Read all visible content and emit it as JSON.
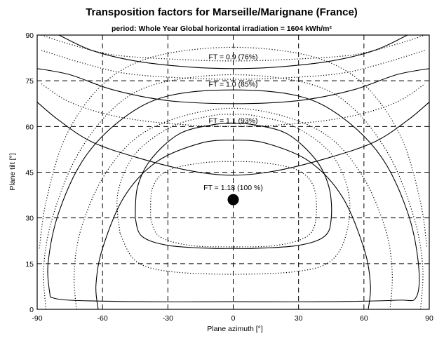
{
  "chart_data": {
    "type": "contour",
    "title": "Transposition factors for Marseille/Marignane (France)",
    "subtitle": "period: Whole Year Global horizontal irradiation =  1604 kWh/m²",
    "xlabel": "Plane azimuth [°]",
    "ylabel": "Plane tilt [°]",
    "xlim": [
      -90,
      90
    ],
    "ylim": [
      0,
      90
    ],
    "xticks": [
      "-90",
      "-60",
      "-30",
      "0",
      "30",
      "60",
      "90"
    ],
    "yticks": [
      "0",
      "15",
      "30",
      "45",
      "60",
      "75",
      "90"
    ],
    "grid": true,
    "optimum": {
      "azimuth": 0,
      "tilt": 36,
      "label": "FT = 1.18 (100 %)"
    },
    "contour_labels": [
      {
        "text": "FT = 0.9 (76%)",
        "azimuth": 0,
        "tilt": 83
      },
      {
        "text": "FT = 1.0 (85%)",
        "azimuth": 0,
        "tilt": 74
      },
      {
        "text": "FT = 1.1 (93%)",
        "azimuth": 0,
        "tilt": 62
      },
      {
        "text": "FT = 1.18 (100 %)",
        "azimuth": 0,
        "tilt": 40
      }
    ],
    "contours": [
      {
        "style": "solid",
        "points": [
          [
            -80,
            90
          ],
          [
            -65,
            85
          ],
          [
            -45,
            81.5
          ],
          [
            -20,
            79.5
          ],
          [
            0,
            79
          ],
          [
            20,
            79.5
          ],
          [
            45,
            81.5
          ],
          [
            65,
            85
          ],
          [
            80,
            90
          ]
        ]
      },
      {
        "style": "solid",
        "points": [
          [
            -90,
            79
          ],
          [
            -75,
            77
          ],
          [
            -55,
            72
          ],
          [
            -30,
            68.5
          ],
          [
            0,
            67.5
          ],
          [
            30,
            68.5
          ],
          [
            55,
            72
          ],
          [
            75,
            77
          ],
          [
            90,
            79
          ]
        ]
      },
      {
        "style": "solid",
        "points": [
          [
            -90,
            68
          ],
          [
            -80,
            62
          ],
          [
            -65,
            55
          ],
          [
            -45,
            50
          ],
          [
            -20,
            45.5
          ],
          [
            0,
            44
          ],
          [
            20,
            45.5
          ],
          [
            45,
            50
          ],
          [
            65,
            55
          ],
          [
            80,
            62
          ],
          [
            90,
            68
          ]
        ]
      },
      {
        "style": "solid",
        "points": [
          [
            -62,
            0
          ],
          [
            -63,
            8
          ],
          [
            -60,
            20
          ],
          [
            -50,
            37
          ],
          [
            -35,
            48.5
          ],
          [
            -15,
            54.5
          ],
          [
            0,
            55.5
          ],
          [
            15,
            54.5
          ],
          [
            35,
            48.5
          ],
          [
            50,
            37
          ],
          [
            60,
            20
          ],
          [
            63,
            8
          ],
          [
            62,
            0
          ]
        ]
      },
      {
        "style": "solid",
        "points": [
          [
            -45,
            30
          ],
          [
            -44,
            40
          ],
          [
            -38,
            49
          ],
          [
            -25,
            57.5
          ],
          [
            -10,
            60.5
          ],
          [
            0,
            61
          ],
          [
            10,
            60.5
          ],
          [
            25,
            57.5
          ],
          [
            38,
            49
          ],
          [
            44,
            40
          ],
          [
            45,
            30
          ],
          [
            42,
            24
          ],
          [
            30,
            21
          ],
          [
            10,
            20
          ],
          [
            0,
            20
          ],
          [
            -10,
            20
          ],
          [
            -30,
            21
          ],
          [
            -42,
            24
          ],
          [
            -45,
            30
          ]
        ]
      },
      {
        "style": "solid",
        "points": [
          [
            -84,
            4
          ],
          [
            -85,
            15
          ],
          [
            -80,
            32
          ],
          [
            -68,
            50
          ],
          [
            -50,
            63
          ],
          [
            -30,
            70
          ],
          [
            0,
            72
          ],
          [
            30,
            70
          ],
          [
            50,
            63
          ],
          [
            68,
            50
          ],
          [
            80,
            32
          ],
          [
            85,
            15
          ],
          [
            84,
            4
          ],
          [
            75,
            3
          ],
          [
            40,
            2.5
          ],
          [
            0,
            2.5
          ],
          [
            -40,
            2.5
          ],
          [
            -75,
            3
          ],
          [
            -84,
            4
          ]
        ]
      },
      {
        "style": "dotted",
        "points": [
          [
            -88,
            90
          ],
          [
            -75,
            87
          ],
          [
            -55,
            83.5
          ],
          [
            -25,
            82
          ],
          [
            0,
            81.5
          ],
          [
            25,
            82
          ],
          [
            55,
            83.5
          ],
          [
            75,
            87
          ],
          [
            88,
            90
          ]
        ]
      },
      {
        "style": "dotted",
        "points": [
          [
            -88,
            85
          ],
          [
            -70,
            81
          ],
          [
            -50,
            77.5
          ],
          [
            -25,
            76
          ],
          [
            0,
            75.5
          ],
          [
            25,
            76
          ],
          [
            50,
            77.5
          ],
          [
            70,
            81
          ],
          [
            88,
            85
          ]
        ]
      },
      {
        "style": "dotted",
        "points": [
          [
            -88,
            74
          ],
          [
            -75,
            68
          ],
          [
            -55,
            63.5
          ],
          [
            -30,
            61
          ],
          [
            0,
            60
          ],
          [
            30,
            61
          ],
          [
            55,
            63.5
          ],
          [
            75,
            68
          ],
          [
            88,
            74
          ]
        ]
      },
      {
        "style": "dotted",
        "points": [
          [
            -38,
            30
          ],
          [
            -37,
            40
          ],
          [
            -30,
            45.5
          ],
          [
            -15,
            48
          ],
          [
            0,
            48.5
          ],
          [
            15,
            48
          ],
          [
            30,
            45.5
          ],
          [
            37,
            40
          ],
          [
            38,
            30
          ],
          [
            34,
            24
          ],
          [
            20,
            21
          ],
          [
            0,
            20.5
          ],
          [
            -20,
            21
          ],
          [
            -34,
            24
          ],
          [
            -38,
            30
          ]
        ]
      },
      {
        "style": "dotted",
        "points": [
          [
            -52,
            25
          ],
          [
            -53,
            38
          ],
          [
            -45,
            51
          ],
          [
            -28,
            60
          ],
          [
            -10,
            63.5
          ],
          [
            0,
            64
          ],
          [
            10,
            63.5
          ],
          [
            28,
            60
          ],
          [
            45,
            51
          ],
          [
            53,
            38
          ],
          [
            52,
            25
          ],
          [
            45,
            16
          ],
          [
            30,
            12.5
          ],
          [
            0,
            11.5
          ],
          [
            -30,
            12.5
          ],
          [
            -45,
            16
          ],
          [
            -52,
            25
          ]
        ]
      },
      {
        "style": "dotted",
        "points": [
          [
            -72,
            0
          ],
          [
            -73,
            12
          ],
          [
            -70,
            26
          ],
          [
            -60,
            43
          ],
          [
            -45,
            56
          ],
          [
            -25,
            63
          ],
          [
            0,
            66
          ],
          [
            25,
            63
          ],
          [
            45,
            56
          ],
          [
            60,
            43
          ],
          [
            70,
            26
          ],
          [
            73,
            12
          ],
          [
            72,
            0
          ]
        ]
      },
      {
        "style": "dotted",
        "points": [
          [
            -86,
            0
          ],
          [
            -87,
            14
          ],
          [
            -83,
            30
          ],
          [
            -72,
            50
          ],
          [
            -55,
            66
          ],
          [
            -35,
            74
          ],
          [
            0,
            77
          ],
          [
            35,
            74
          ],
          [
            55,
            66
          ],
          [
            72,
            50
          ],
          [
            83,
            30
          ],
          [
            87,
            14
          ],
          [
            86,
            0
          ]
        ]
      },
      {
        "style": "dotted",
        "points": [
          [
            -89,
            20
          ],
          [
            -86,
            35
          ],
          [
            -78,
            55
          ],
          [
            -65,
            70
          ],
          [
            -50,
            79
          ],
          [
            -30,
            84
          ],
          [
            0,
            86
          ],
          [
            30,
            84
          ],
          [
            50,
            79
          ],
          [
            65,
            70
          ],
          [
            78,
            55
          ],
          [
            86,
            35
          ],
          [
            89,
            20
          ]
        ]
      }
    ]
  }
}
